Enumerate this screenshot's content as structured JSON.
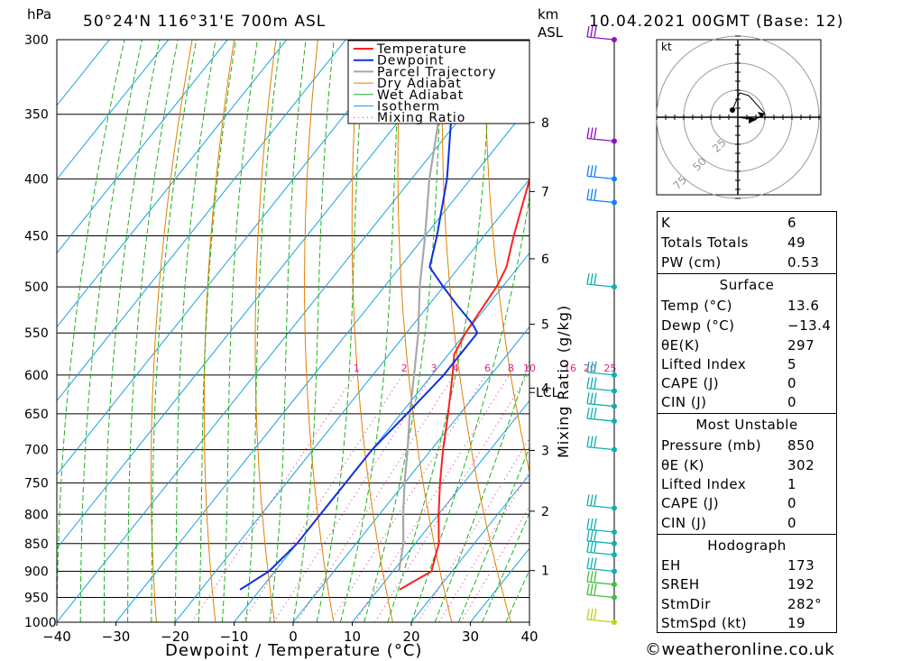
{
  "header": {
    "pressure_unit": "hPa",
    "location": "50°24'N 116°31'E 700m ASL",
    "km_unit": "km",
    "km_sub": "ASL",
    "datetime": "10.04.2021 00GMT (Base: 12)"
  },
  "legend": [
    "Temperature",
    "Dewpoint",
    "Parcel Trajectory",
    "Dry Adiabat",
    "Wet Adiabat",
    "Isotherm",
    "Mixing Ratio"
  ],
  "colors": {
    "temperature": "#ff2020",
    "dewpoint": "#1030e0",
    "parcel": "#a8a8a8",
    "dry_adiabat": "#e08000",
    "wet_adiabat": "#20b020",
    "isotherm": "#10a0e0",
    "mixing_ratio": "#e0208a",
    "wind_purple": "#9010c0",
    "wind_blue": "#1080ff",
    "wind_cyan": "#10b0b0",
    "wind_green": "#40c040",
    "wind_yellow": "#c0d020"
  },
  "chart_data": {
    "type": "skew-t",
    "xlabel": "Dewpoint / Temperature (°C)",
    "ylabel_right": "Mixing Ratio (g/kg)",
    "x_ticks": [
      "−40",
      "−30",
      "−20",
      "−10",
      "0",
      "10",
      "20",
      "30",
      "40"
    ],
    "xlim": [
      -40,
      40
    ],
    "pressure_levels": [
      "300",
      "350",
      "400",
      "450",
      "500",
      "550",
      "600",
      "650",
      "700",
      "750",
      "800",
      "850",
      "900",
      "950",
      "1000"
    ],
    "ylim_hpa": [
      1000,
      300
    ],
    "km_ticks": [
      "1",
      "2",
      "3",
      "4",
      "5",
      "6",
      "7",
      "8"
    ],
    "lcl_label": "LCL",
    "mixing_ratio_labels": [
      "1",
      "2",
      "3",
      "4",
      "6",
      "8",
      "10",
      "16",
      "20",
      "25"
    ],
    "temperature": {
      "p": [
        935,
        900,
        850,
        800,
        750,
        700,
        650,
        600,
        575,
        550,
        500,
        480,
        450,
        400,
        350,
        325,
        300
      ],
      "t": [
        13.6,
        16.5,
        14,
        10,
        6,
        2,
        -2,
        -6.5,
        -9,
        -10,
        -11,
        -12,
        -15,
        -20,
        -27,
        -31,
        -35
      ]
    },
    "dewpoint": {
      "p": [
        935,
        900,
        850,
        800,
        750,
        700,
        650,
        600,
        550,
        540,
        520,
        500,
        480,
        450,
        400,
        350,
        300
      ],
      "t": [
        -13.4,
        -11,
        -10,
        -10,
        -10,
        -10,
        -9,
        -8,
        -8,
        -10,
        -15,
        -20,
        -25,
        -28,
        -34,
        -42,
        -49
      ]
    },
    "parcel": {
      "p": [
        900,
        850,
        800,
        750,
        700,
        650,
        600,
        550,
        500,
        450,
        400,
        350,
        300
      ],
      "t": [
        11,
        8,
        4,
        0,
        -4,
        -8.5,
        -13,
        -18,
        -24,
        -30,
        -37,
        -44,
        -52
      ]
    },
    "winds": [
      {
        "p": 300,
        "color": "purple"
      },
      {
        "p": 370,
        "color": "purple"
      },
      {
        "p": 400,
        "color": "blue"
      },
      {
        "p": 420,
        "color": "blue"
      },
      {
        "p": 500,
        "color": "cyan"
      },
      {
        "p": 600,
        "color": "cyan"
      },
      {
        "p": 620,
        "color": "cyan"
      },
      {
        "p": 640,
        "color": "cyan"
      },
      {
        "p": 660,
        "color": "cyan"
      },
      {
        "p": 700,
        "color": "cyan"
      },
      {
        "p": 790,
        "color": "cyan"
      },
      {
        "p": 830,
        "color": "cyan"
      },
      {
        "p": 850,
        "color": "cyan"
      },
      {
        "p": 870,
        "color": "cyan"
      },
      {
        "p": 900,
        "color": "cyan"
      },
      {
        "p": 925,
        "color": "green"
      },
      {
        "p": 950,
        "color": "green"
      },
      {
        "p": 1000,
        "color": "yellow"
      }
    ]
  },
  "hodograph": {
    "unit": "kt",
    "ring_labels": [
      "25",
      "50",
      "75"
    ]
  },
  "indices": [
    {
      "label": "K",
      "value": "6"
    },
    {
      "label": "Totals Totals",
      "value": "49"
    },
    {
      "label": "PW (cm)",
      "value": "0.53"
    }
  ],
  "surface": {
    "title": "Surface",
    "rows": [
      {
        "label": "Temp (°C)",
        "value": "13.6"
      },
      {
        "label": "Dewp (°C)",
        "value": "−13.4"
      },
      {
        "label": "θE(K)",
        "value": "297"
      },
      {
        "label": "Lifted Index",
        "value": "5"
      },
      {
        "label": "CAPE (J)",
        "value": "0"
      },
      {
        "label": "CIN (J)",
        "value": "0"
      }
    ]
  },
  "most_unstable": {
    "title": "Most Unstable",
    "rows": [
      {
        "label": "Pressure (mb)",
        "value": "850"
      },
      {
        "label": "θE (K)",
        "value": "302"
      },
      {
        "label": "Lifted Index",
        "value": "1"
      },
      {
        "label": "CAPE (J)",
        "value": "0"
      },
      {
        "label": "CIN (J)",
        "value": "0"
      }
    ]
  },
  "hodograph_table": {
    "title": "Hodograph",
    "rows": [
      {
        "label": "EH",
        "value": "173"
      },
      {
        "label": "SREH",
        "value": "192"
      },
      {
        "label": "StmDir",
        "value": "282°"
      },
      {
        "label": "StmSpd (kt)",
        "value": "19"
      }
    ]
  },
  "footer": "©weatheronline.co.uk"
}
